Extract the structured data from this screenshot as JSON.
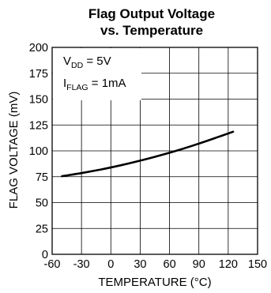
{
  "chart_data": {
    "type": "line",
    "title_lines": [
      "Flag Output Voltage",
      "vs. Temperature"
    ],
    "xlabel": "TEMPERATURE (°C)",
    "ylabel": "FLAG VOLTAGE (mV)",
    "xlim": [
      -60,
      150
    ],
    "ylim": [
      0,
      200
    ],
    "x_ticks": [
      -60,
      -30,
      0,
      30,
      60,
      90,
      120,
      150
    ],
    "y_ticks": [
      0,
      25,
      50,
      75,
      100,
      125,
      150,
      175,
      200
    ],
    "x_tick_labels": [
      "-60",
      "-30",
      "0",
      "30",
      "60",
      "90",
      "120",
      "150"
    ],
    "y_tick_labels": [
      "0",
      "25",
      "50",
      "75",
      "100",
      "125",
      "150",
      "175",
      "200"
    ],
    "grid": true,
    "annotations": [
      {
        "main": "V",
        "sub": "DD",
        "rest": " = 5V"
      },
      {
        "main": "I",
        "sub": "FLAG",
        "rest": " = 1mA"
      }
    ],
    "series": [
      {
        "color": "#000000",
        "x": [
          -50,
          -30,
          -10,
          10,
          30,
          50,
          70,
          90,
          110,
          125
        ],
        "y": [
          75.5,
          78.5,
          82,
          86,
          90.5,
          95.5,
          101,
          107,
          113.5,
          118.5
        ]
      }
    ]
  }
}
